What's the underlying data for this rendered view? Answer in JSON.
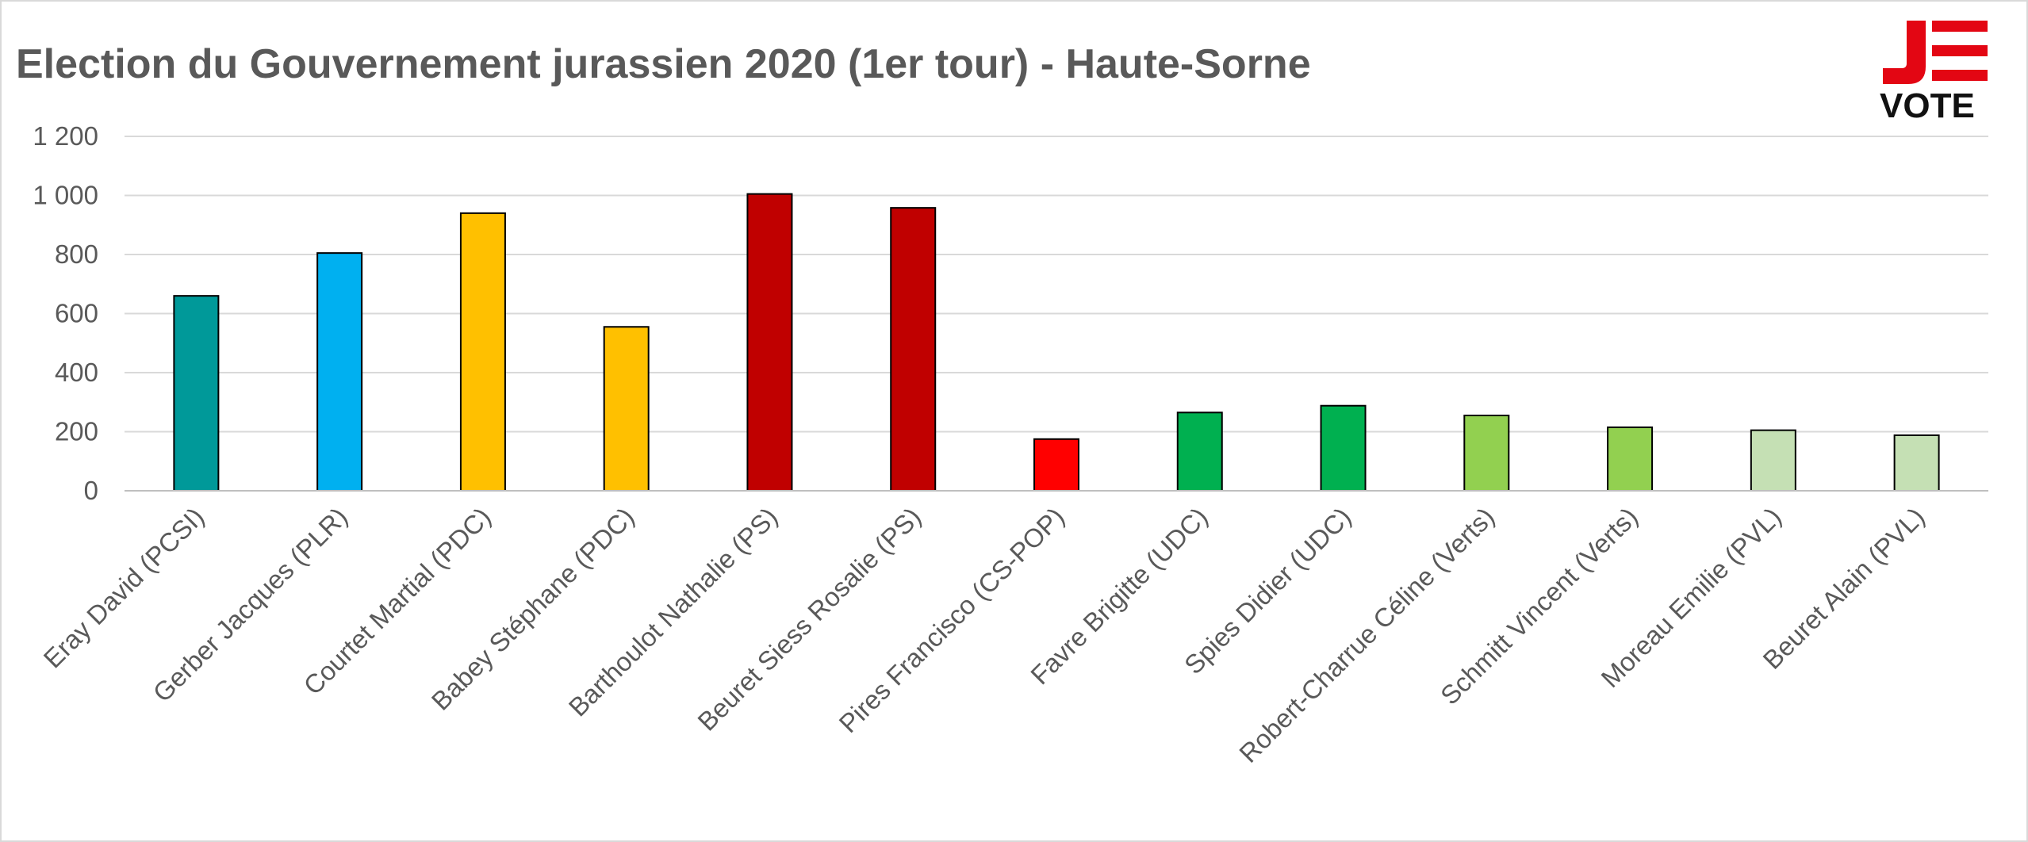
{
  "chart_data": {
    "type": "bar",
    "title": "Election du Gouvernement jurassien 2020 (1er tour) - Haute-Sorne",
    "xlabel": "",
    "ylabel": "",
    "ylim": [
      0,
      1200
    ],
    "yticks": [
      0,
      200,
      400,
      600,
      800,
      1000,
      1200
    ],
    "ytick_labels": [
      "0",
      "200",
      "400",
      "600",
      "800",
      "1 000",
      "1 200"
    ],
    "grid": true,
    "legend": "none",
    "categories": [
      "Eray David (PCSI)",
      "Gerber Jacques (PLR)",
      "Courtet Martial (PDC)",
      "Babey Stéphane (PDC)",
      "Barthoulot Nathalie (PS)",
      "Beuret Siess Rosalie (PS)",
      "Pires Francisco (CS-POP)",
      "Favre Brigitte (UDC)",
      "Spies Didier (UDC)",
      "Robert-Charrue Céline (Verts)",
      "Schmitt Vincent (Verts)",
      "Moreau Emilie (PVL)",
      "Beuret Alain (PVL)"
    ],
    "values": [
      660,
      805,
      940,
      555,
      1005,
      958,
      175,
      265,
      288,
      255,
      215,
      205,
      188
    ],
    "colors": [
      "#009999",
      "#00b0f0",
      "#ffc000",
      "#ffc000",
      "#c00000",
      "#c00000",
      "#ff0000",
      "#00b050",
      "#00b050",
      "#92d050",
      "#92d050",
      "#c5e0b4",
      "#c5e0b4"
    ]
  },
  "logo": {
    "letter": "J",
    "word": "VOTE",
    "red": "#e30613"
  }
}
